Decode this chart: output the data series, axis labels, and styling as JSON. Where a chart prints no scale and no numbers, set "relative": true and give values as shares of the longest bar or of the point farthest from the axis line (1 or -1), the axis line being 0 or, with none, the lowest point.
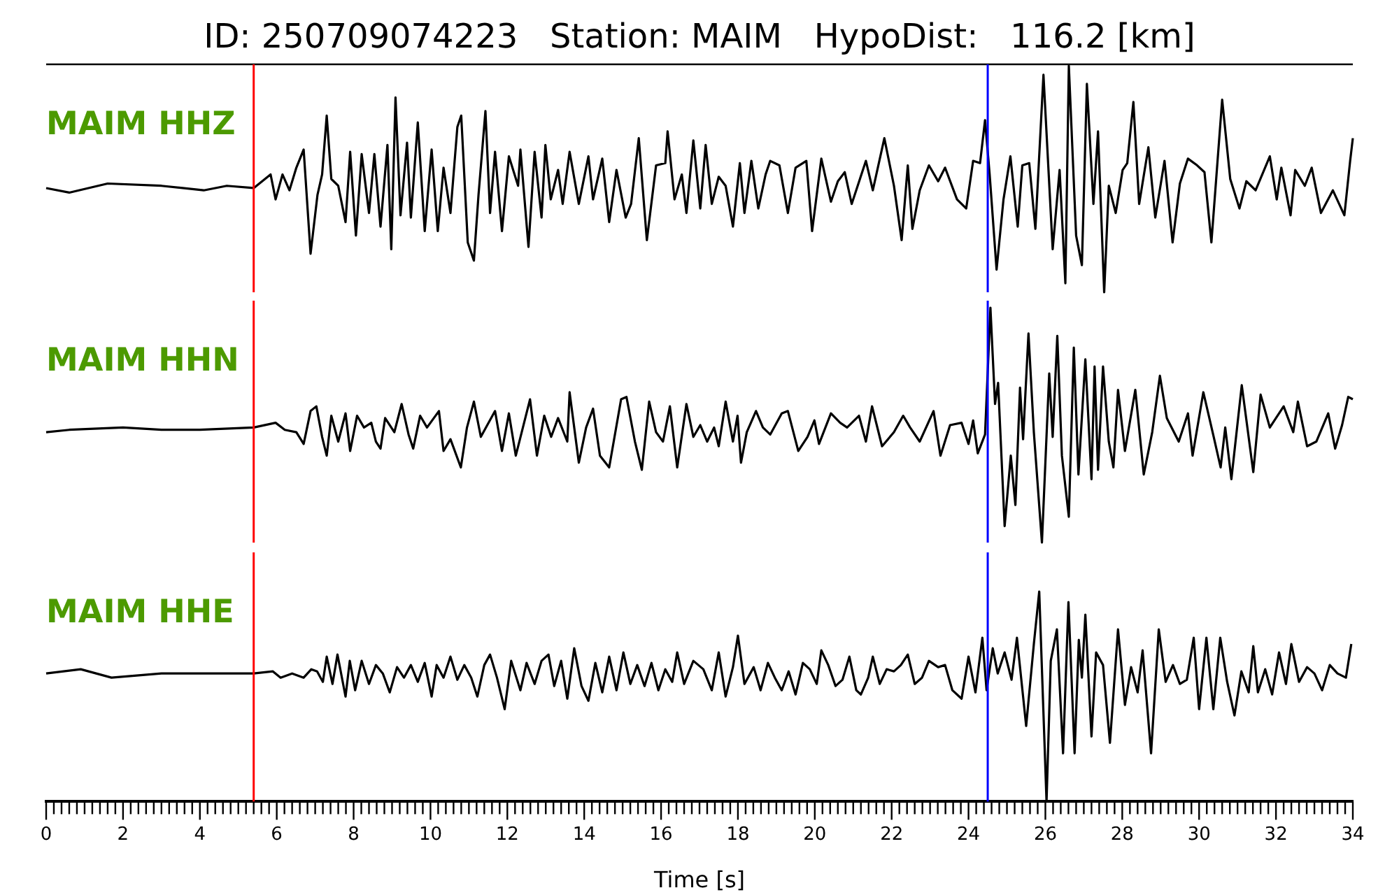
{
  "chart_data": [
    {
      "type": "line",
      "title": "ID: 250709074223   Station: MAIM   HypoDist:   116.2 [km]",
      "relative": true,
      "xlim": [
        0,
        34
      ],
      "tick_labels": false,
      "ref_lines": [
        {
          "axis": "x",
          "value": 5.4,
          "color": "#ff0000"
        },
        {
          "axis": "x",
          "value": 24.5,
          "color": "#0000ff"
        }
      ],
      "x": [
        0.0,
        0.6,
        1.6,
        3.0,
        4.1,
        4.7,
        5.4,
        5.84,
        5.97,
        6.15,
        6.33,
        6.51,
        6.7,
        6.88,
        7.06,
        7.18,
        7.3,
        7.42,
        7.6,
        7.79,
        7.91,
        8.06,
        8.21,
        8.4,
        8.54,
        8.7,
        8.88,
        8.98,
        9.09,
        9.22,
        9.39,
        9.49,
        9.67,
        9.85,
        10.03,
        10.19,
        10.34,
        10.52,
        10.7,
        10.8,
        10.97,
        11.13,
        11.25,
        11.43,
        11.55,
        11.68,
        11.86,
        12.04,
        12.28,
        12.34,
        12.55,
        12.71,
        12.89,
        12.99,
        13.13,
        13.32,
        13.44,
        13.62,
        13.86,
        14.11,
        14.23,
        14.47,
        14.65,
        14.84,
        15.08,
        15.22,
        15.42,
        15.63,
        15.87,
        16.11,
        16.17,
        16.35,
        16.54,
        16.66,
        16.84,
        17.02,
        17.16,
        17.32,
        17.5,
        17.68,
        17.87,
        18.05,
        18.17,
        18.35,
        18.53,
        18.72,
        18.84,
        19.08,
        19.3,
        19.5,
        19.78,
        19.93,
        20.17,
        20.42,
        20.6,
        20.78,
        20.96,
        21.33,
        21.51,
        21.81,
        22.06,
        22.26,
        22.42,
        22.54,
        22.73,
        22.97,
        23.21,
        23.39,
        23.7,
        23.94,
        24.12,
        24.3,
        24.43,
        24.55,
        24.73,
        24.91,
        25.09,
        25.28,
        25.4,
        25.58,
        25.74,
        25.95,
        26.19,
        26.37,
        26.52,
        26.61,
        26.8,
        26.95,
        27.08,
        27.25,
        27.37,
        27.53,
        27.65,
        27.83,
        28.01,
        28.13,
        28.29,
        28.44,
        28.68,
        28.86,
        29.1,
        29.31,
        29.5,
        29.71,
        29.95,
        30.14,
        30.32,
        30.6,
        30.81,
        31.05,
        31.23,
        31.47,
        31.84,
        32.02,
        32.14,
        32.38,
        32.5,
        32.75,
        32.93,
        33.17,
        33.48,
        33.78,
        33.93,
        34.0
      ],
      "series": [
        {
          "name": "MAIM HHZ",
          "color": "#000000",
          "values": [
            0.46,
            0.44,
            0.48,
            0.47,
            0.45,
            0.47,
            0.46,
            0.52,
            0.41,
            0.52,
            0.45,
            0.55,
            0.63,
            0.17,
            0.43,
            0.52,
            0.78,
            0.5,
            0.47,
            0.31,
            0.62,
            0.25,
            0.61,
            0.35,
            0.61,
            0.29,
            0.65,
            0.19,
            0.86,
            0.34,
            0.66,
            0.33,
            0.75,
            0.27,
            0.63,
            0.27,
            0.55,
            0.35,
            0.73,
            0.78,
            0.22,
            0.14,
            0.43,
            0.8,
            0.35,
            0.62,
            0.27,
            0.6,
            0.47,
            0.63,
            0.2,
            0.62,
            0.33,
            0.65,
            0.41,
            0.54,
            0.39,
            0.62,
            0.39,
            0.6,
            0.41,
            0.59,
            0.31,
            0.54,
            0.33,
            0.39,
            0.68,
            0.23,
            0.56,
            0.57,
            0.71,
            0.41,
            0.52,
            0.35,
            0.67,
            0.37,
            0.65,
            0.39,
            0.51,
            0.47,
            0.29,
            0.57,
            0.35,
            0.58,
            0.37,
            0.52,
            0.58,
            0.56,
            0.35,
            0.55,
            0.58,
            0.27,
            0.59,
            0.4,
            0.49,
            0.53,
            0.39,
            0.58,
            0.45,
            0.68,
            0.47,
            0.23,
            0.56,
            0.28,
            0.45,
            0.56,
            0.49,
            0.55,
            0.41,
            0.37,
            0.58,
            0.57,
            0.76,
            0.52,
            0.1,
            0.41,
            0.6,
            0.29,
            0.56,
            0.57,
            0.28,
            0.96,
            0.19,
            0.54,
            0.04,
            1.0,
            0.25,
            0.12,
            0.92,
            0.39,
            0.71,
            0.0,
            0.47,
            0.35,
            0.54,
            0.57,
            0.84,
            0.39,
            0.64,
            0.33,
            0.58,
            0.22,
            0.48,
            0.59,
            0.56,
            0.53,
            0.22,
            0.85,
            0.5,
            0.37,
            0.49,
            0.45,
            0.6,
            0.41,
            0.55,
            0.34,
            0.54,
            0.47,
            0.55,
            0.35,
            0.45,
            0.34,
            0.58,
            0.68
          ]
        }
      ]
    },
    {
      "type": "line",
      "relative": true,
      "xlim": [
        0,
        34
      ],
      "tick_labels": false,
      "ref_lines": [
        {
          "axis": "x",
          "value": 5.4,
          "color": "#ff0000"
        },
        {
          "axis": "x",
          "value": 24.5,
          "color": "#0000ff"
        }
      ],
      "x": [
        0.0,
        0.6,
        2.0,
        3.0,
        4.0,
        5.4,
        5.97,
        6.21,
        6.51,
        6.7,
        6.88,
        7.03,
        7.18,
        7.3,
        7.42,
        7.6,
        7.79,
        7.91,
        8.09,
        8.27,
        8.46,
        8.58,
        8.7,
        8.82,
        9.06,
        9.25,
        9.43,
        9.55,
        9.73,
        9.91,
        10.22,
        10.34,
        10.52,
        10.79,
        10.95,
        11.13,
        11.31,
        11.68,
        11.86,
        12.04,
        12.22,
        12.59,
        12.77,
        12.96,
        13.14,
        13.32,
        13.56,
        13.62,
        13.86,
        14.05,
        14.23,
        14.41,
        14.65,
        14.96,
        15.1,
        15.32,
        15.5,
        15.69,
        15.87,
        16.05,
        16.23,
        16.42,
        16.66,
        16.84,
        17.02,
        17.2,
        17.38,
        17.5,
        17.68,
        17.87,
        17.99,
        18.08,
        18.23,
        18.47,
        18.65,
        18.84,
        19.14,
        19.3,
        19.57,
        19.81,
        19.99,
        20.11,
        20.42,
        20.66,
        20.84,
        21.15,
        21.33,
        21.49,
        21.75,
        22.06,
        22.3,
        22.48,
        22.73,
        23.09,
        23.27,
        23.52,
        23.82,
        24.0,
        24.12,
        24.24,
        24.43,
        24.57,
        24.69,
        24.77,
        24.94,
        25.1,
        25.22,
        25.34,
        25.42,
        25.56,
        25.7,
        25.91,
        26.1,
        26.19,
        26.31,
        26.43,
        26.61,
        26.74,
        26.86,
        27.04,
        27.2,
        27.28,
        27.37,
        27.5,
        27.65,
        27.77,
        27.89,
        28.07,
        28.34,
        28.56,
        28.78,
        28.98,
        29.16,
        29.47,
        29.71,
        29.83,
        30.11,
        30.38,
        30.56,
        30.68,
        30.84,
        31.11,
        31.41,
        31.6,
        31.84,
        32.2,
        32.45,
        32.57,
        32.81,
        33.05,
        33.36,
        33.54,
        33.72,
        33.88,
        34.0
      ],
      "series": [
        {
          "name": "MAIM HHN",
          "color": "#000000",
          "values": [
            0.47,
            0.48,
            0.49,
            0.48,
            0.48,
            0.49,
            0.51,
            0.48,
            0.47,
            0.42,
            0.56,
            0.58,
            0.45,
            0.37,
            0.54,
            0.43,
            0.55,
            0.39,
            0.54,
            0.49,
            0.51,
            0.43,
            0.4,
            0.53,
            0.47,
            0.59,
            0.46,
            0.4,
            0.54,
            0.49,
            0.56,
            0.39,
            0.44,
            0.32,
            0.49,
            0.6,
            0.45,
            0.56,
            0.39,
            0.55,
            0.37,
            0.61,
            0.37,
            0.54,
            0.45,
            0.53,
            0.43,
            0.64,
            0.34,
            0.49,
            0.57,
            0.37,
            0.32,
            0.61,
            0.62,
            0.43,
            0.31,
            0.6,
            0.47,
            0.43,
            0.58,
            0.32,
            0.59,
            0.45,
            0.5,
            0.43,
            0.49,
            0.41,
            0.6,
            0.43,
            0.54,
            0.34,
            0.47,
            0.56,
            0.49,
            0.46,
            0.55,
            0.56,
            0.39,
            0.45,
            0.52,
            0.42,
            0.55,
            0.51,
            0.49,
            0.54,
            0.43,
            0.58,
            0.41,
            0.47,
            0.54,
            0.49,
            0.43,
            0.56,
            0.37,
            0.5,
            0.51,
            0.42,
            0.52,
            0.38,
            0.46,
            1.0,
            0.59,
            0.68,
            0.07,
            0.37,
            0.16,
            0.66,
            0.44,
            0.89,
            0.47,
            0.0,
            0.72,
            0.45,
            0.88,
            0.37,
            0.11,
            0.83,
            0.29,
            0.78,
            0.27,
            0.75,
            0.31,
            0.75,
            0.43,
            0.32,
            0.65,
            0.39,
            0.65,
            0.29,
            0.47,
            0.71,
            0.53,
            0.43,
            0.55,
            0.37,
            0.64,
            0.45,
            0.32,
            0.49,
            0.27,
            0.67,
            0.3,
            0.63,
            0.49,
            0.58,
            0.47,
            0.6,
            0.41,
            0.43,
            0.55,
            0.4,
            0.5,
            0.62,
            0.61
          ]
        }
      ]
    },
    {
      "type": "line",
      "relative": true,
      "xlim": [
        0,
        34
      ],
      "xlabel": "Time [s]",
      "tick_labels": "x",
      "ref_lines": [
        {
          "axis": "x",
          "value": 5.4,
          "color": "#ff0000"
        },
        {
          "axis": "x",
          "value": 24.5,
          "color": "#0000ff"
        }
      ],
      "xticks": [
        0,
        {
          "value": 0.2,
          "label": null
        },
        {
          "value": 0.4,
          "label": null
        },
        {
          "value": 0.6,
          "label": null
        },
        {
          "value": 0.8,
          "label": null
        },
        {
          "value": 1,
          "label": null
        },
        {
          "value": 1.2,
          "label": null
        },
        {
          "value": 1.4,
          "label": null
        },
        {
          "value": 1.6,
          "label": null
        },
        {
          "value": 1.8,
          "label": null
        },
        2,
        {
          "value": 2.2,
          "label": null
        },
        {
          "value": 2.4,
          "label": null
        },
        {
          "value": 2.6,
          "label": null
        },
        {
          "value": 2.8,
          "label": null
        },
        {
          "value": 3,
          "label": null
        },
        {
          "value": 3.2,
          "label": null
        },
        {
          "value": 3.4,
          "label": null
        },
        {
          "value": 3.6,
          "label": null
        },
        {
          "value": 3.8,
          "label": null
        },
        4,
        {
          "value": 4.2,
          "label": null
        },
        {
          "value": 4.4,
          "label": null
        },
        {
          "value": 4.6,
          "label": null
        },
        {
          "value": 4.8,
          "label": null
        },
        {
          "value": 5,
          "label": null
        },
        {
          "value": 5.2,
          "label": null
        },
        {
          "value": 5.4,
          "label": null
        },
        {
          "value": 5.6,
          "label": null
        },
        {
          "value": 5.8,
          "label": null
        },
        6,
        {
          "value": 6.2,
          "label": null
        },
        {
          "value": 6.4,
          "label": null
        },
        {
          "value": 6.6,
          "label": null
        },
        {
          "value": 6.8,
          "label": null
        },
        {
          "value": 7,
          "label": null
        },
        {
          "value": 7.2,
          "label": null
        },
        {
          "value": 7.4,
          "label": null
        },
        {
          "value": 7.6,
          "label": null
        },
        {
          "value": 7.8,
          "label": null
        },
        8,
        {
          "value": 8.2,
          "label": null
        },
        {
          "value": 8.4,
          "label": null
        },
        {
          "value": 8.6,
          "label": null
        },
        {
          "value": 8.8,
          "label": null
        },
        {
          "value": 9,
          "label": null
        },
        {
          "value": 9.2,
          "label": null
        },
        {
          "value": 9.4,
          "label": null
        },
        {
          "value": 9.6,
          "label": null
        },
        {
          "value": 9.8,
          "label": null
        },
        10,
        {
          "value": 10.2,
          "label": null
        },
        {
          "value": 10.4,
          "label": null
        },
        {
          "value": 10.6,
          "label": null
        },
        {
          "value": 10.8,
          "label": null
        },
        {
          "value": 11,
          "label": null
        },
        {
          "value": 11.2,
          "label": null
        },
        {
          "value": 11.4,
          "label": null
        },
        {
          "value": 11.6,
          "label": null
        },
        {
          "value": 11.8,
          "label": null
        },
        12,
        {
          "value": 12.2,
          "label": null
        },
        {
          "value": 12.4,
          "label": null
        },
        {
          "value": 12.6,
          "label": null
        },
        {
          "value": 12.8,
          "label": null
        },
        {
          "value": 13,
          "label": null
        },
        {
          "value": 13.2,
          "label": null
        },
        {
          "value": 13.4,
          "label": null
        },
        {
          "value": 13.6,
          "label": null
        },
        {
          "value": 13.8,
          "label": null
        },
        14,
        {
          "value": 14.2,
          "label": null
        },
        {
          "value": 14.4,
          "label": null
        },
        {
          "value": 14.6,
          "label": null
        },
        {
          "value": 14.8,
          "label": null
        },
        {
          "value": 15,
          "label": null
        },
        {
          "value": 15.2,
          "label": null
        },
        {
          "value": 15.4,
          "label": null
        },
        {
          "value": 15.6,
          "label": null
        },
        {
          "value": 15.8,
          "label": null
        },
        16,
        {
          "value": 16.2,
          "label": null
        },
        {
          "value": 16.4,
          "label": null
        },
        {
          "value": 16.6,
          "label": null
        },
        {
          "value": 16.8,
          "label": null
        },
        {
          "value": 17,
          "label": null
        },
        {
          "value": 17.2,
          "label": null
        },
        {
          "value": 17.4,
          "label": null
        },
        {
          "value": 17.6,
          "label": null
        },
        {
          "value": 17.8,
          "label": null
        },
        18,
        {
          "value": 18.2,
          "label": null
        },
        {
          "value": 18.4,
          "label": null
        },
        {
          "value": 18.6,
          "label": null
        },
        {
          "value": 18.8,
          "label": null
        },
        {
          "value": 19,
          "label": null
        },
        {
          "value": 19.2,
          "label": null
        },
        {
          "value": 19.4,
          "label": null
        },
        {
          "value": 19.6,
          "label": null
        },
        {
          "value": 19.8,
          "label": null
        },
        20,
        {
          "value": 20.2,
          "label": null
        },
        {
          "value": 20.4,
          "label": null
        },
        {
          "value": 20.6,
          "label": null
        },
        {
          "value": 20.8,
          "label": null
        },
        {
          "value": 21,
          "label": null
        },
        {
          "value": 21.2,
          "label": null
        },
        {
          "value": 21.4,
          "label": null
        },
        {
          "value": 21.6,
          "label": null
        },
        {
          "value": 21.8,
          "label": null
        },
        22,
        {
          "value": 22.2,
          "label": null
        },
        {
          "value": 22.4,
          "label": null
        },
        {
          "value": 22.6,
          "label": null
        },
        {
          "value": 22.8,
          "label": null
        },
        {
          "value": 23,
          "label": null
        },
        {
          "value": 23.2,
          "label": null
        },
        {
          "value": 23.4,
          "label": null
        },
        {
          "value": 23.6,
          "label": null
        },
        {
          "value": 23.8,
          "label": null
        },
        24,
        {
          "value": 24.2,
          "label": null
        },
        {
          "value": 24.4,
          "label": null
        },
        {
          "value": 24.6,
          "label": null
        },
        {
          "value": 24.8,
          "label": null
        },
        {
          "value": 25,
          "label": null
        },
        {
          "value": 25.2,
          "label": null
        },
        {
          "value": 25.4,
          "label": null
        },
        {
          "value": 25.6,
          "label": null
        },
        {
          "value": 25.8,
          "label": null
        },
        26,
        {
          "value": 26.2,
          "label": null
        },
        {
          "value": 26.4,
          "label": null
        },
        {
          "value": 26.6,
          "label": null
        },
        {
          "value": 26.8,
          "label": null
        },
        {
          "value": 27,
          "label": null
        },
        {
          "value": 27.2,
          "label": null
        },
        {
          "value": 27.4,
          "label": null
        },
        {
          "value": 27.6,
          "label": null
        },
        {
          "value": 27.8,
          "label": null
        },
        28,
        {
          "value": 28.2,
          "label": null
        },
        {
          "value": 28.4,
          "label": null
        },
        {
          "value": 28.6,
          "label": null
        },
        {
          "value": 28.8,
          "label": null
        },
        {
          "value": 29,
          "label": null
        },
        {
          "value": 29.2,
          "label": null
        },
        {
          "value": 29.4,
          "label": null
        },
        {
          "value": 29.6,
          "label": null
        },
        {
          "value": 29.8,
          "label": null
        },
        30,
        {
          "value": 30.2,
          "label": null
        },
        {
          "value": 30.4,
          "label": null
        },
        {
          "value": 30.6,
          "label": null
        },
        {
          "value": 30.8,
          "label": null
        },
        {
          "value": 31,
          "label": null
        },
        {
          "value": 31.2,
          "label": null
        },
        {
          "value": 31.4,
          "label": null
        },
        {
          "value": 31.6,
          "label": null
        },
        {
          "value": 31.8,
          "label": null
        },
        32,
        {
          "value": 32.2,
          "label": null
        },
        {
          "value": 32.4,
          "label": null
        },
        {
          "value": 32.6,
          "label": null
        },
        {
          "value": 32.8,
          "label": null
        },
        {
          "value": 33,
          "label": null
        },
        {
          "value": 33.2,
          "label": null
        },
        {
          "value": 33.4,
          "label": null
        },
        {
          "value": 33.6,
          "label": null
        },
        {
          "value": 33.8,
          "label": null
        },
        34
      ],
      "x": [
        0.0,
        0.9,
        1.7,
        3.0,
        4.5,
        5.4,
        5.9,
        6.1,
        6.4,
        6.7,
        6.9,
        7.05,
        7.2,
        7.3,
        7.45,
        7.58,
        7.79,
        7.9,
        8.04,
        8.21,
        8.4,
        8.58,
        8.76,
        8.94,
        9.13,
        9.31,
        9.49,
        9.67,
        9.85,
        10.03,
        10.16,
        10.34,
        10.52,
        10.7,
        10.88,
        11.06,
        11.22,
        11.4,
        11.55,
        11.73,
        11.93,
        12.1,
        12.34,
        12.5,
        12.71,
        12.89,
        13.07,
        13.22,
        13.4,
        13.56,
        13.74,
        13.93,
        14.11,
        14.29,
        14.47,
        14.65,
        14.84,
        15.02,
        15.2,
        15.38,
        15.57,
        15.75,
        15.93,
        16.11,
        16.29,
        16.42,
        16.6,
        16.84,
        17.1,
        17.32,
        17.5,
        17.68,
        17.87,
        18.0,
        18.17,
        18.41,
        18.59,
        18.78,
        18.96,
        19.14,
        19.32,
        19.5,
        19.69,
        19.87,
        20.05,
        20.17,
        20.35,
        20.54,
        20.72,
        20.9,
        21.08,
        21.2,
        21.39,
        21.51,
        21.69,
        21.87,
        22.06,
        22.24,
        22.42,
        22.6,
        22.79,
        22.97,
        23.21,
        23.39,
        23.58,
        23.82,
        24.0,
        24.18,
        24.36,
        24.47,
        24.63,
        24.76,
        24.94,
        25.12,
        25.26,
        25.5,
        25.7,
        25.84,
        26.03,
        26.14,
        26.3,
        26.46,
        26.6,
        26.76,
        26.87,
        26.95,
        27.04,
        27.2,
        27.32,
        27.5,
        27.68,
        27.89,
        28.07,
        28.23,
        28.4,
        28.53,
        28.75,
        28.95,
        29.13,
        29.32,
        29.5,
        29.68,
        29.86,
        30.0,
        30.19,
        30.37,
        30.55,
        30.73,
        30.92,
        31.1,
        31.29,
        31.41,
        31.53,
        31.72,
        31.9,
        32.08,
        32.26,
        32.4,
        32.6,
        32.81,
        33.0,
        33.2,
        33.4,
        33.6,
        33.82,
        33.96
      ],
      "series": [
        {
          "name": "MAIM HHE",
          "color": "#000000",
          "values": [
            0.61,
            0.63,
            0.59,
            0.61,
            0.61,
            0.61,
            0.62,
            0.59,
            0.61,
            0.59,
            0.63,
            0.62,
            0.57,
            0.69,
            0.56,
            0.7,
            0.5,
            0.67,
            0.53,
            0.67,
            0.56,
            0.65,
            0.61,
            0.52,
            0.64,
            0.59,
            0.65,
            0.57,
            0.66,
            0.5,
            0.65,
            0.59,
            0.69,
            0.58,
            0.65,
            0.59,
            0.5,
            0.65,
            0.7,
            0.59,
            0.44,
            0.67,
            0.53,
            0.66,
            0.56,
            0.67,
            0.7,
            0.55,
            0.67,
            0.49,
            0.73,
            0.55,
            0.48,
            0.66,
            0.52,
            0.69,
            0.53,
            0.71,
            0.56,
            0.65,
            0.55,
            0.66,
            0.53,
            0.63,
            0.57,
            0.71,
            0.56,
            0.67,
            0.63,
            0.53,
            0.71,
            0.5,
            0.64,
            0.79,
            0.56,
            0.64,
            0.53,
            0.66,
            0.59,
            0.53,
            0.62,
            0.51,
            0.66,
            0.63,
            0.56,
            0.72,
            0.65,
            0.55,
            0.58,
            0.69,
            0.53,
            0.51,
            0.59,
            0.69,
            0.56,
            0.63,
            0.62,
            0.65,
            0.7,
            0.56,
            0.59,
            0.67,
            0.64,
            0.65,
            0.53,
            0.49,
            0.69,
            0.52,
            0.78,
            0.53,
            0.73,
            0.61,
            0.71,
            0.58,
            0.78,
            0.36,
            0.75,
            1.0,
            0.0,
            0.67,
            0.82,
            0.23,
            0.95,
            0.23,
            0.77,
            0.59,
            0.89,
            0.31,
            0.71,
            0.65,
            0.28,
            0.82,
            0.46,
            0.64,
            0.52,
            0.72,
            0.23,
            0.82,
            0.57,
            0.65,
            0.56,
            0.58,
            0.78,
            0.44,
            0.78,
            0.44,
            0.78,
            0.57,
            0.41,
            0.62,
            0.52,
            0.74,
            0.52,
            0.63,
            0.51,
            0.71,
            0.56,
            0.75,
            0.57,
            0.64,
            0.61,
            0.53,
            0.65,
            0.61,
            0.59,
            0.75
          ]
        }
      ]
    }
  ]
}
